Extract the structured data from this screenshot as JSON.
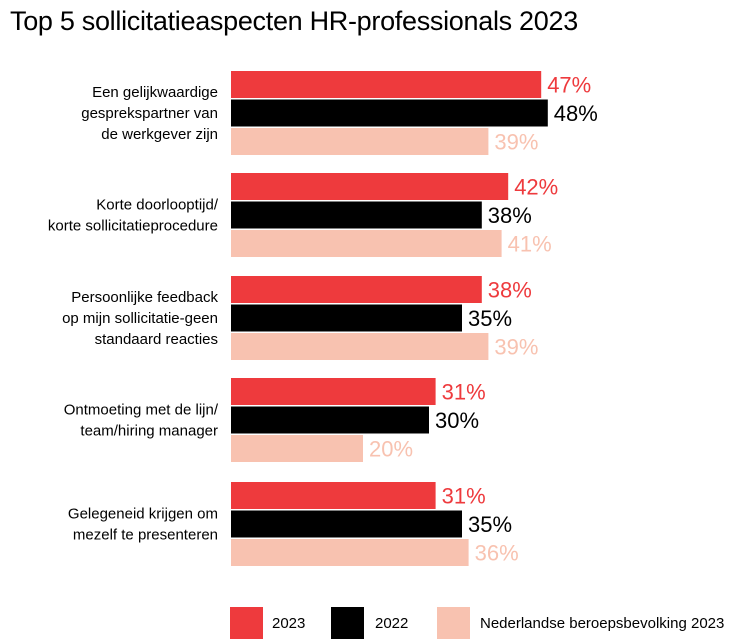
{
  "title": "Top 5 sollicitatieaspecten HR-professionals 2023",
  "colors": {
    "s2023": "#ee3a3d",
    "s2022": "#000000",
    "nl": "#f8c2b0"
  },
  "chart_data": {
    "type": "bar",
    "orientation": "horizontal",
    "title": "Top 5 sollicitatieaspecten HR-professionals 2023",
    "categories": [
      [
        "Een gelijkwaardige",
        "gesprekspartner van",
        "de werkgever zijn"
      ],
      [
        "Korte doorlooptijd/",
        "korte sollicitatieprocedure"
      ],
      [
        "Persoonlijke feedback",
        "op mijn sollicitatie-geen",
        "standaard reacties"
      ],
      [
        "Ontmoeting met de lijn/",
        "team/hiring manager"
      ],
      [
        "Gelegeneid krijgen om",
        "mezelf te presenteren"
      ]
    ],
    "series": [
      {
        "name": "2023",
        "values": [
          47,
          42,
          38,
          31,
          31
        ],
        "labels": [
          "47%",
          "42%",
          "38%",
          "31%",
          "31%"
        ]
      },
      {
        "name": "2022",
        "values": [
          48,
          38,
          35,
          30,
          35
        ],
        "labels": [
          "48%",
          "38%",
          "35%",
          "30%",
          "35%"
        ]
      },
      {
        "name": "Nederlandse beroepsbevolking 2023",
        "values": [
          39,
          41,
          39,
          20,
          36
        ],
        "labels": [
          "39%",
          "41%",
          "39%",
          "20%",
          "36%"
        ]
      }
    ],
    "xlim": [
      0,
      100
    ],
    "grid": false,
    "legend_position": "bottom"
  }
}
